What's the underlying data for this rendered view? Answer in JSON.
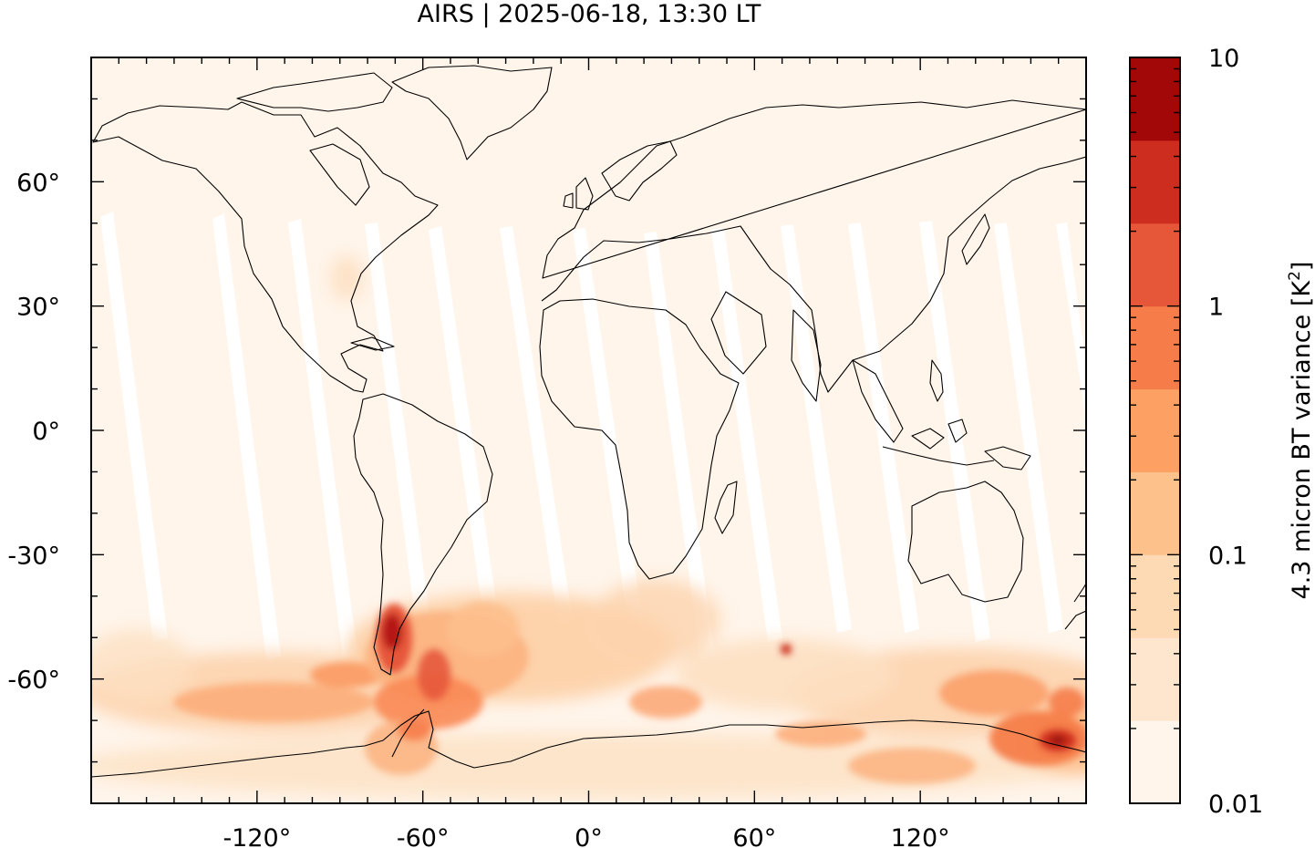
{
  "title": "AIRS | 2025-06-18, 13:30 LT",
  "map": {
    "projection": "equirectangular",
    "lon_range": [
      -180,
      180
    ],
    "lat_range": [
      -90,
      90
    ],
    "x_ticks": [
      {
        "value": -120,
        "label": "-120°"
      },
      {
        "value": -60,
        "label": "-60°"
      },
      {
        "value": 0,
        "label": "0°"
      },
      {
        "value": 60,
        "label": "60°"
      },
      {
        "value": 120,
        "label": "120°"
      }
    ],
    "y_ticks": [
      {
        "value": 60,
        "label": "60°"
      },
      {
        "value": 30,
        "label": "30°"
      },
      {
        "value": 0,
        "label": "0°"
      },
      {
        "value": -30,
        "label": "-30°"
      },
      {
        "value": -60,
        "label": "-60°"
      }
    ],
    "background_color": "#fff5eb",
    "swath_gap_color": "#ffffff",
    "coastline_color": "#000000"
  },
  "colorbar": {
    "label": "4.3 micron BT variance [K",
    "label_superscript": "2",
    "label_suffix": "]",
    "scale": "log",
    "range": [
      0.01,
      10
    ],
    "tick_labels": [
      {
        "value": 10,
        "label": "10"
      },
      {
        "value": 1,
        "label": "1"
      },
      {
        "value": 0.1,
        "label": "0.1"
      },
      {
        "value": 0.01,
        "label": "0.01"
      }
    ],
    "colors": [
      "#fff5eb",
      "#fee6ce",
      "#fdd9b4",
      "#fdc28c",
      "#fda063",
      "#f67d4a",
      "#e6573a",
      "#cd2d1f",
      "#a30808"
    ]
  }
}
